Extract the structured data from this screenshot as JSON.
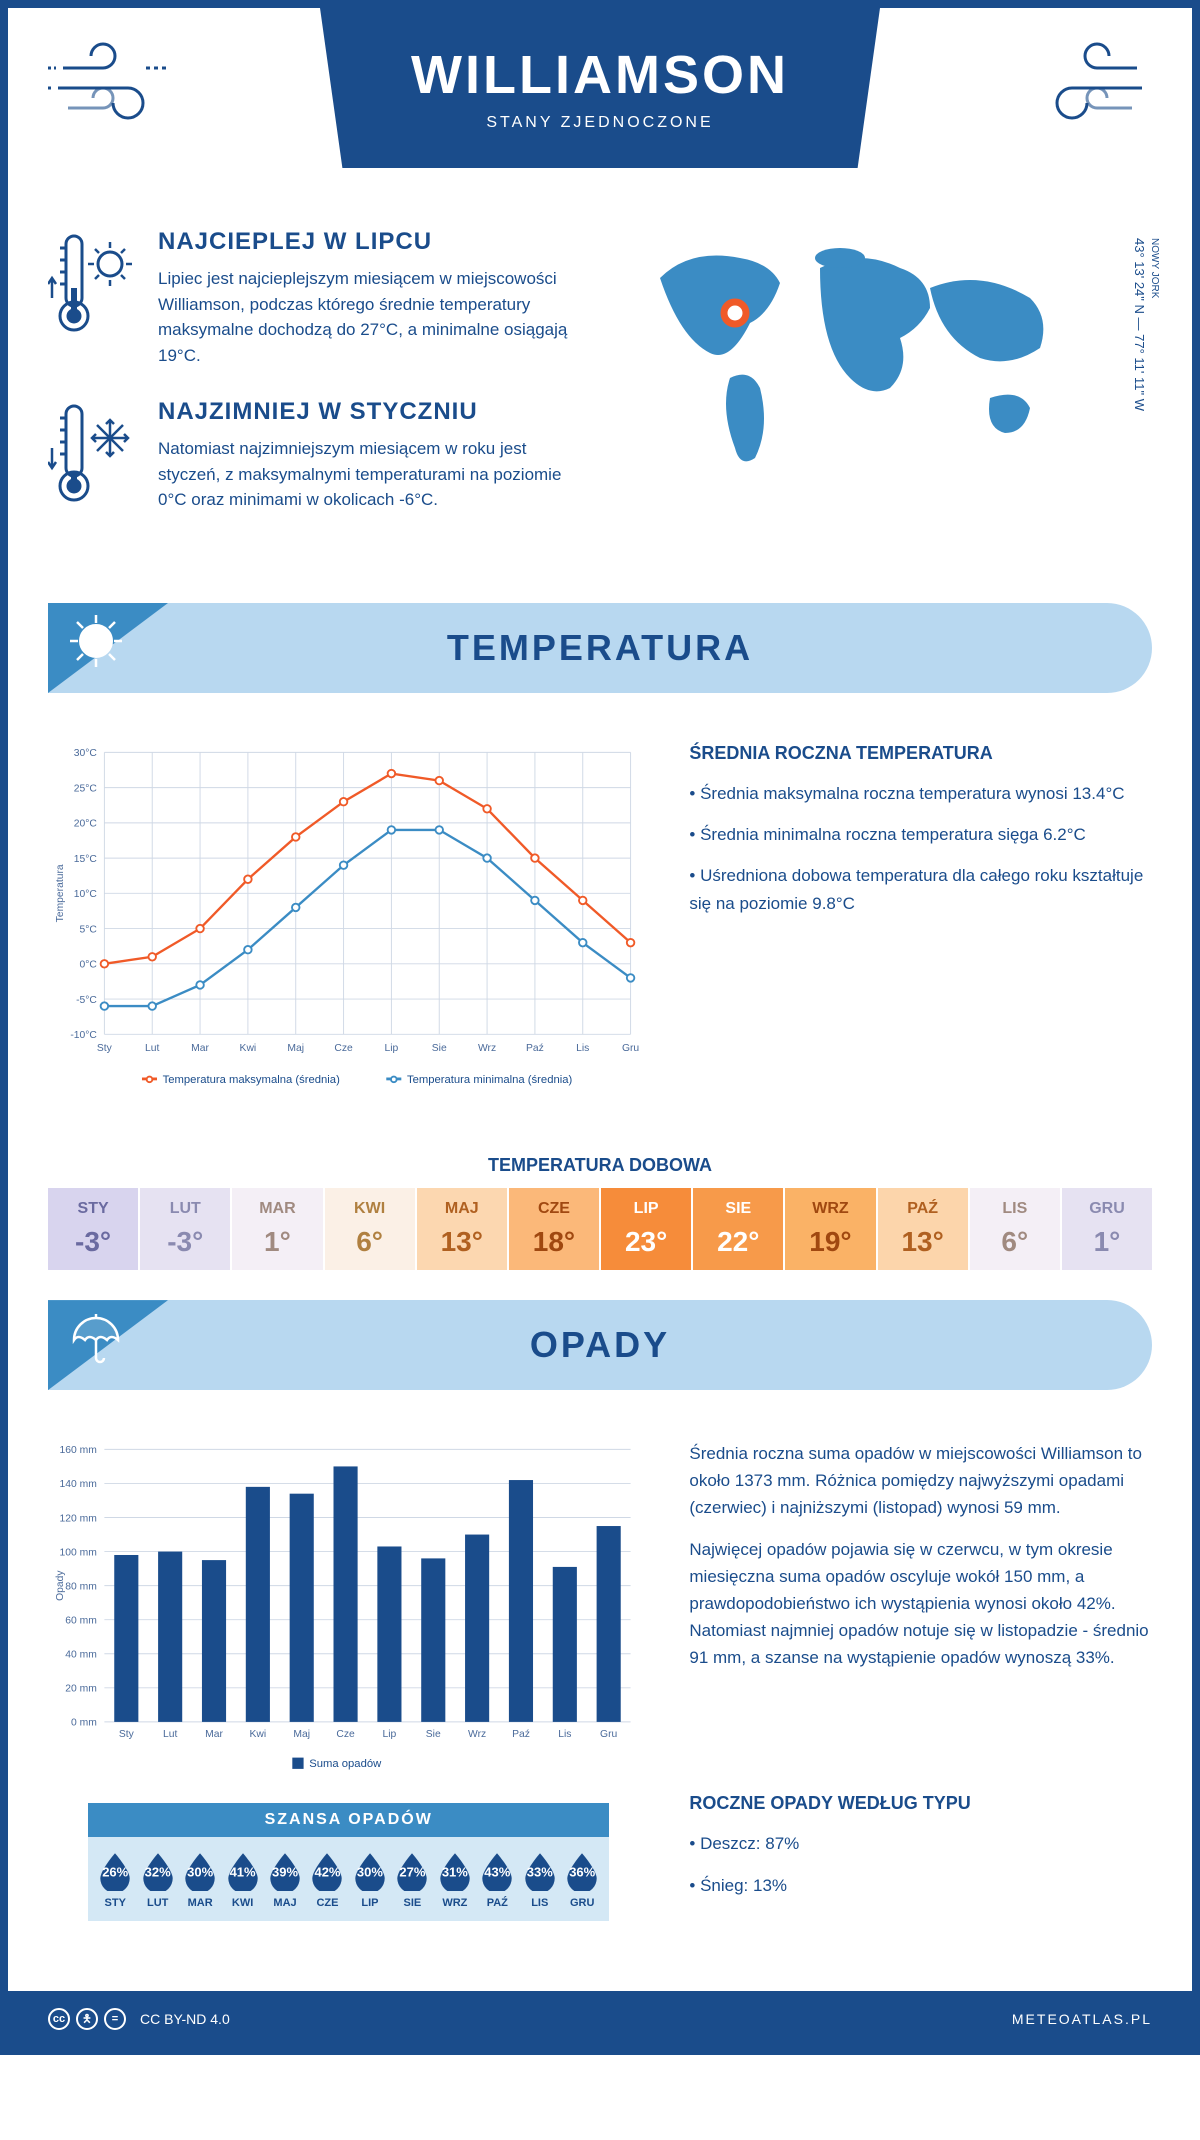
{
  "header": {
    "title": "WILLIAMSON",
    "subtitle": "STANY ZJEDNOCZONE"
  },
  "intro": {
    "hot": {
      "title": "NAJCIEPLEJ W LIPCU",
      "text": "Lipiec jest najcieplejszym miesiącem w miejscowości Williamson, podczas którego średnie temperatury maksymalne dochodzą do 27°C, a minimalne osiągają 19°C."
    },
    "cold": {
      "title": "NAJZIMNIEJ W STYCZNIU",
      "text": "Natomiast najzimniejszym miesiącem w roku jest styczeń, z maksymalnymi temperaturami na poziomie 0°C oraz minimami w okolicach -6°C."
    },
    "coords_line1": "43° 13' 24\" N — 77° 11' 11\" W",
    "coords_region": "NOWY JORK"
  },
  "temperature": {
    "section_title": "TEMPERATURA",
    "chart": {
      "months": [
        "Sty",
        "Lut",
        "Mar",
        "Kwi",
        "Maj",
        "Cze",
        "Lip",
        "Sie",
        "Wrz",
        "Paź",
        "Lis",
        "Gru"
      ],
      "ylabel": "Temperatura",
      "ylim": [
        -10,
        30
      ],
      "ytick_step": 5,
      "series": {
        "max": {
          "label": "Temperatura maksymalna (średnia)",
          "color": "#f05a28",
          "values": [
            0,
            1,
            5,
            12,
            18,
            23,
            27,
            26,
            22,
            15,
            9,
            3
          ]
        },
        "min": {
          "label": "Temperatura minimalna (średnia)",
          "color": "#3b8cc4",
          "values": [
            -6,
            -6,
            -3,
            2,
            8,
            14,
            19,
            19,
            15,
            9,
            3,
            -2
          ]
        }
      },
      "grid_color": "#cfd8e5",
      "line_width": 2.5,
      "marker": "circle",
      "marker_size": 4
    },
    "side": {
      "heading": "ŚREDNIA ROCZNA TEMPERATURA",
      "bullets": [
        "Średnia maksymalna roczna temperatura wynosi 13.4°C",
        "Średnia minimalna roczna temperatura sięga 6.2°C",
        "Uśredniona dobowa temperatura dla całego roku kształtuje się na poziomie 9.8°C"
      ]
    },
    "daily": {
      "title": "TEMPERATURA DOBOWA",
      "months": [
        "STY",
        "LUT",
        "MAR",
        "KWI",
        "MAJ",
        "CZE",
        "LIP",
        "SIE",
        "WRZ",
        "PAŹ",
        "LIS",
        "GRU"
      ],
      "values": [
        "-3°",
        "-3°",
        "1°",
        "6°",
        "13°",
        "18°",
        "23°",
        "22°",
        "19°",
        "13°",
        "6°",
        "1°"
      ],
      "bg_colors": [
        "#d8d4ee",
        "#e6e2f2",
        "#f4eff6",
        "#fbf0e6",
        "#fcd7b0",
        "#fbb879",
        "#f68c3a",
        "#f79a4a",
        "#fab266",
        "#fcd5ab",
        "#f4eff6",
        "#e6e2f2"
      ],
      "text_colors": [
        "#6a6aa0",
        "#8a8ab0",
        "#a08a80",
        "#b08040",
        "#b06020",
        "#a04810",
        "#ffffff",
        "#ffffff",
        "#a04810",
        "#b06020",
        "#a08a80",
        "#8a8ab0"
      ]
    }
  },
  "precipitation": {
    "section_title": "OPADY",
    "chart": {
      "months": [
        "Sty",
        "Lut",
        "Mar",
        "Kwi",
        "Maj",
        "Cze",
        "Lip",
        "Sie",
        "Wrz",
        "Paź",
        "Lis",
        "Gru"
      ],
      "ylabel": "Opady",
      "ylim": [
        0,
        160
      ],
      "ytick_step": 20,
      "bar_color": "#1a4c8b",
      "values": [
        98,
        100,
        95,
        138,
        134,
        150,
        103,
        96,
        110,
        142,
        91,
        115
      ],
      "legend_label": "Suma opadów",
      "grid_color": "#cfd8e5",
      "bar_width": 0.55
    },
    "side": {
      "para1": "Średnia roczna suma opadów w miejscowości Williamson to około 1373 mm. Różnica pomiędzy najwyższymi opadami (czerwiec) i najniższymi (listopad) wynosi 59 mm.",
      "para2": "Najwięcej opadów pojawia się w czerwcu, w tym okresie miesięczna suma opadów oscyluje wokół 150 mm, a prawdopodobieństwo ich wystąpienia wynosi około 42%. Natomiast najmniej opadów notuje się w listopadzie - średnio 91 mm, a szanse na wystąpienie opadów wynoszą 33%."
    },
    "chance": {
      "title": "SZANSA OPADÓW",
      "months": [
        "STY",
        "LUT",
        "MAR",
        "KWI",
        "MAJ",
        "CZE",
        "LIP",
        "SIE",
        "WRZ",
        "PAŹ",
        "LIS",
        "GRU"
      ],
      "values": [
        "26%",
        "32%",
        "30%",
        "41%",
        "39%",
        "42%",
        "30%",
        "27%",
        "31%",
        "43%",
        "33%",
        "36%"
      ],
      "drop_color": "#1a4c8b",
      "bg_color": "#d4e8f5"
    },
    "by_type": {
      "heading": "ROCZNE OPADY WEDŁUG TYPU",
      "items": [
        "Deszcz: 87%",
        "Śnieg: 13%"
      ]
    }
  },
  "footer": {
    "license": "CC BY-ND 4.0",
    "brand": "METEOATLAS.PL"
  },
  "colors": {
    "primary": "#1a4c8b",
    "accent": "#3b8cc4",
    "light_blue": "#b8d8f0",
    "orange": "#f05a28"
  }
}
